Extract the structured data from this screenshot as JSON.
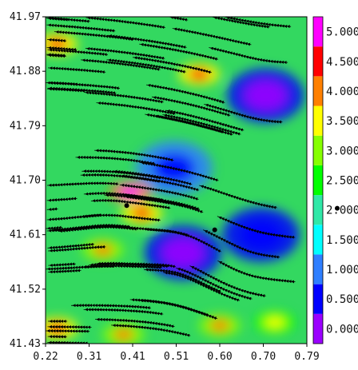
{
  "chart_data": {
    "type": "heatmap",
    "overlay": "streamlines",
    "title": "",
    "xlabel": "",
    "ylabel": "",
    "x_ticks": [
      "0.22",
      "0.31",
      "0.41",
      "0.51",
      "0.60",
      "0.70",
      "0.79"
    ],
    "y_ticks": [
      "41.97",
      "41.88",
      "41.79",
      "41.70",
      "41.61",
      "41.52",
      "41.43"
    ],
    "xlim": [
      0.22,
      0.79
    ],
    "ylim": [
      41.43,
      41.97
    ],
    "colorbar": {
      "labels": [
        "0.000",
        "0.500",
        "1.000",
        "1.500",
        "2.000",
        "2.500",
        "3.000",
        "3.500",
        "4.000",
        "4.500",
        "5.000"
      ],
      "colors": [
        "#9b00ff",
        "#0000ff",
        "#2f7fff",
        "#00ffff",
        "#30e8a8",
        "#00ff00",
        "#86ff00",
        "#ffff00",
        "#ff8000",
        "#ff0000",
        "#ff00ff"
      ],
      "marker_value": 2.0
    },
    "markers": [
      {
        "x": 0.397,
        "y": 41.658
      },
      {
        "x": 0.589,
        "y": 41.618
      }
    ],
    "hotspots": [
      {
        "x": 0.245,
        "y": 41.925,
        "value": 4.6
      },
      {
        "x": 0.405,
        "y": 41.68,
        "value": 5.1
      },
      {
        "x": 0.43,
        "y": 41.645,
        "value": 4.6
      },
      {
        "x": 0.345,
        "y": 41.585,
        "value": 4.1
      },
      {
        "x": 0.555,
        "y": 41.875,
        "value": 4.5
      },
      {
        "x": 0.245,
        "y": 41.455,
        "value": 4.6
      },
      {
        "x": 0.39,
        "y": 41.445,
        "value": 4.3
      },
      {
        "x": 0.6,
        "y": 41.46,
        "value": 4.2
      },
      {
        "x": 0.72,
        "y": 41.465,
        "value": 3.8
      }
    ],
    "lowzones": [
      {
        "x": 0.52,
        "y": 41.58,
        "value": 0.6
      },
      {
        "x": 0.7,
        "y": 41.84,
        "value": 0.7
      },
      {
        "x": 0.69,
        "y": 41.61,
        "value": 0.9
      },
      {
        "x": 0.5,
        "y": 41.72,
        "value": 1.2
      }
    ],
    "grid": false,
    "legend": "colorbar-right"
  }
}
